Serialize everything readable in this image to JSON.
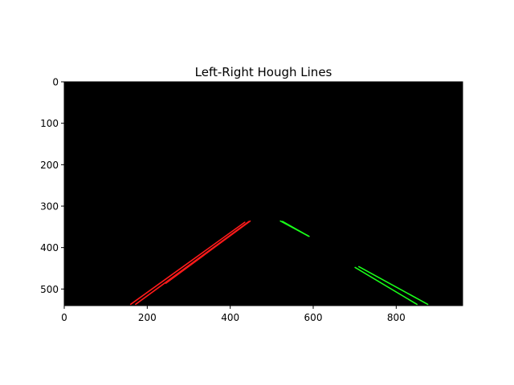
{
  "chart_data": {
    "type": "line",
    "title": "Left-Right Hough Lines",
    "xlabel": "",
    "ylabel": "",
    "xlim": [
      0,
      960
    ],
    "ylim": [
      540,
      0
    ],
    "grid": false,
    "image_background": "#000000",
    "x_ticks": [
      0,
      200,
      400,
      600,
      800
    ],
    "y_ticks": [
      0,
      100,
      200,
      300,
      400,
      500
    ],
    "series": [
      {
        "color": "#ff1a1a",
        "segments": [
          [
            [
              160,
              537
            ],
            [
              435,
              339
            ]
          ],
          [
            [
              172,
              537
            ],
            [
              445,
              337
            ]
          ],
          [
            [
              245,
              486
            ],
            [
              448,
              336
            ]
          ]
        ]
      },
      {
        "color": "#19ff19",
        "segments": [
          [
            [
              521,
              336
            ],
            [
              588,
              372
            ]
          ],
          [
            [
              526,
              337
            ],
            [
              590,
              373
            ]
          ],
          [
            [
              701,
              448
            ],
            [
              850,
              537
            ]
          ],
          [
            [
              710,
              446
            ],
            [
              876,
              537
            ]
          ]
        ]
      }
    ]
  }
}
